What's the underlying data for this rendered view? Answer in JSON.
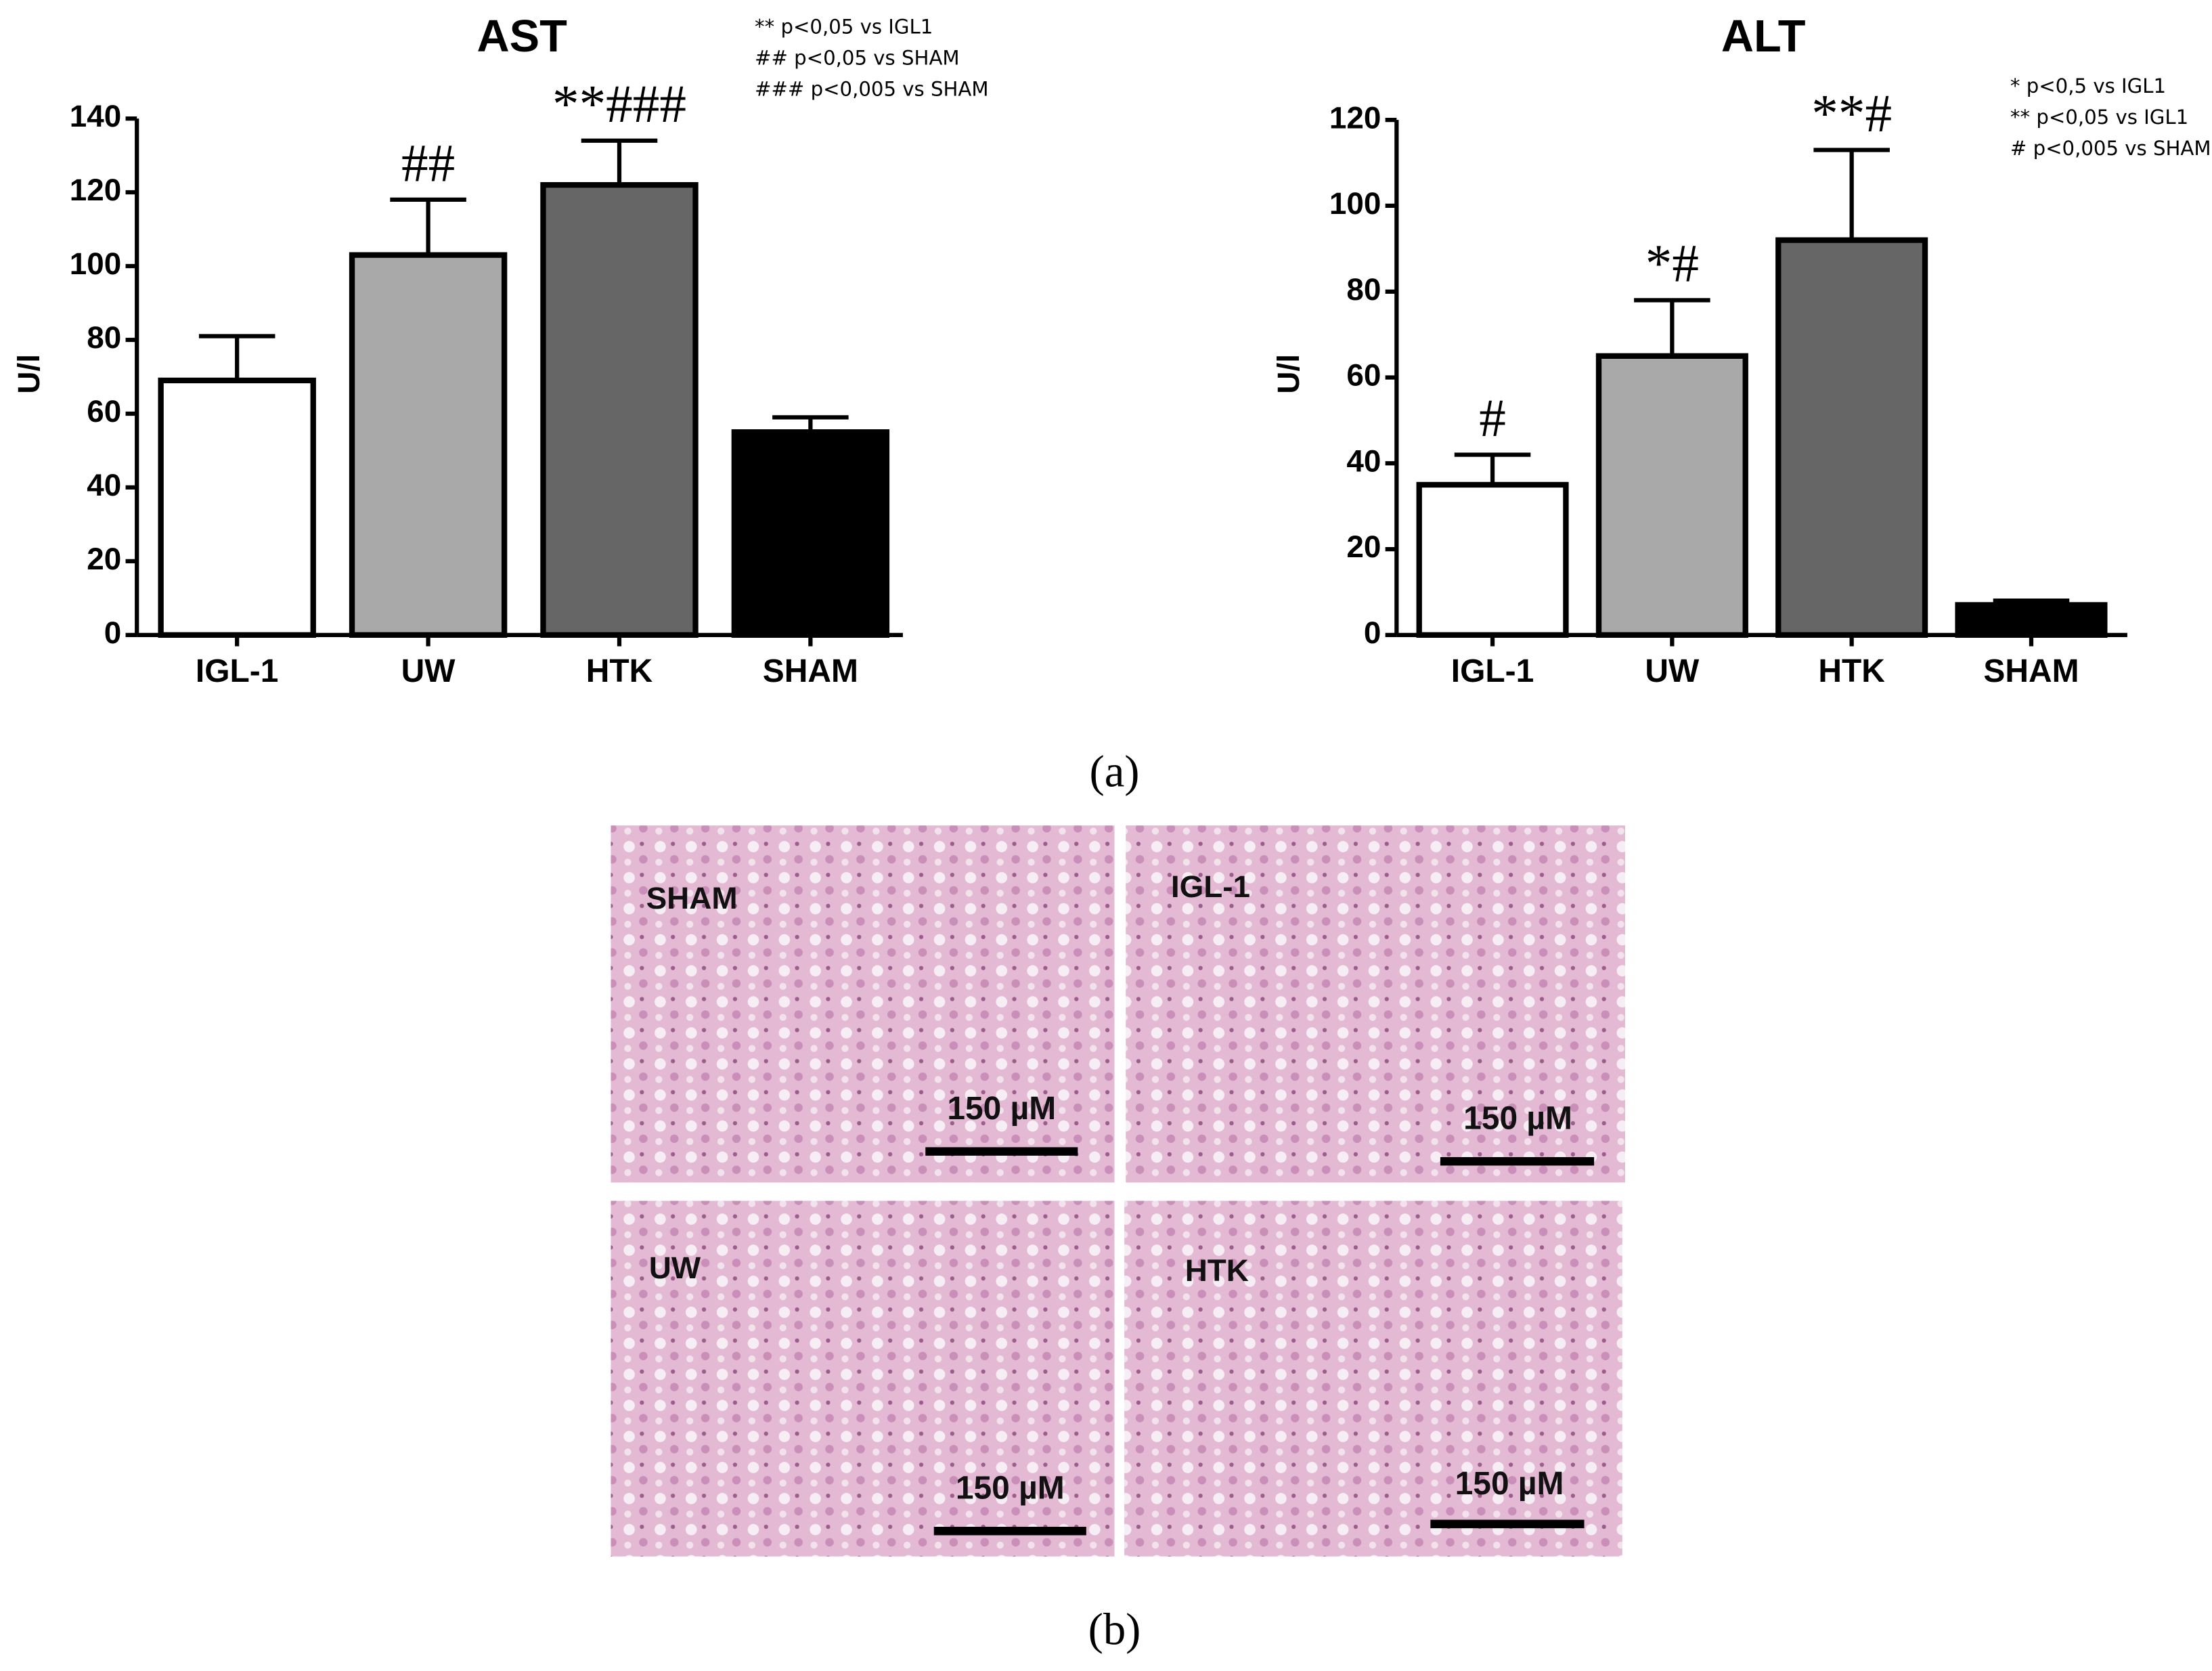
{
  "chart_data": [
    {
      "type": "bar",
      "title": "AST",
      "y_label": "U/l",
      "categories": [
        "IGL-1",
        "UW",
        "HTK",
        "SHAM"
      ],
      "values": [
        69,
        103,
        122,
        55
      ],
      "errors": [
        12,
        15,
        12,
        4
      ],
      "colors": [
        "#ffffff",
        "#a9a9a9",
        "#666666",
        "#000000"
      ],
      "annotations": [
        null,
        "##",
        "**###",
        null
      ],
      "notes": [
        "** p<0,05 vs IGL1",
        "## p<0,05 vs SHAM",
        "### p<0,005 vs SHAM"
      ],
      "ylim": [
        0,
        140
      ],
      "yticks": [
        0,
        20,
        40,
        60,
        80,
        100,
        120,
        140
      ]
    },
    {
      "type": "bar",
      "title": "ALT",
      "y_label": "U/l",
      "categories": [
        "IGL-1",
        "UW",
        "HTK",
        "SHAM"
      ],
      "values": [
        35,
        65,
        92,
        7
      ],
      "errors": [
        7,
        13,
        21,
        1
      ],
      "colors": [
        "#ffffff",
        "#a9a9a9",
        "#666666",
        "#000000"
      ],
      "annotations": [
        "#",
        "*#",
        "**#",
        null
      ],
      "notes": [
        "* p<0,5 vs IGL1",
        "** p<0,05 vs IGL1",
        "# p<0,005 vs SHAM"
      ],
      "ylim": [
        0,
        120
      ],
      "yticks": [
        0,
        20,
        40,
        60,
        80,
        100,
        120
      ]
    }
  ],
  "panel_labels": [
    "(a)",
    "(b)"
  ],
  "micrographs": [
    {
      "label": "SHAM",
      "scale": "150 µM"
    },
    {
      "label": "IGL-1",
      "scale": "150 µM"
    },
    {
      "label": "UW",
      "scale": "150 µM"
    },
    {
      "label": "HTK",
      "scale": "150 µM"
    }
  ]
}
